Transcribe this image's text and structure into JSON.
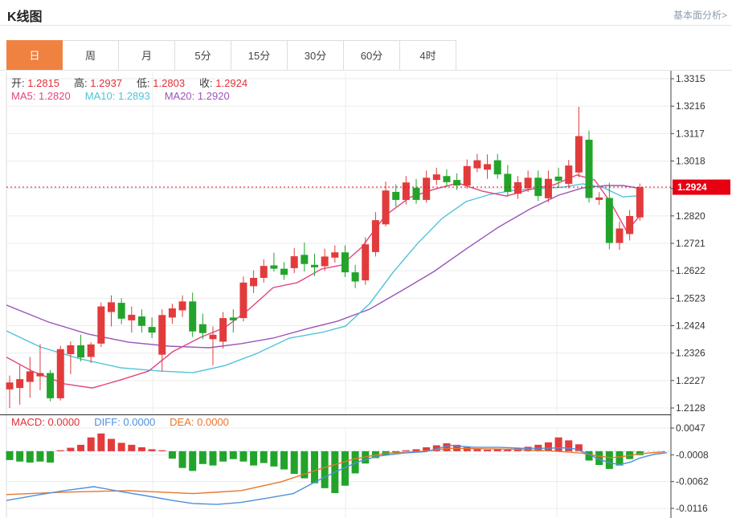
{
  "header": {
    "title": "K线图",
    "link": "基本面分析>"
  },
  "tabs": {
    "items": [
      "日",
      "周",
      "月",
      "5分",
      "15分",
      "30分",
      "60分",
      "4时"
    ],
    "active_index": 0
  },
  "info": {
    "open_label": "开:",
    "open": "1.2815",
    "high_label": "高:",
    "high": "1.2937",
    "low_label": "低:",
    "low": "1.2803",
    "close_label": "收:",
    "close": "1.2924"
  },
  "ma_info": {
    "ma5_label": "MA5:",
    "ma5": "1.2820",
    "ma10_label": "MA10:",
    "ma10": "1.2893",
    "ma20_label": "MA20:",
    "ma20": "1.2920"
  },
  "macd_info": {
    "macd_label": "MACD:",
    "macd": "0.0000",
    "diff_label": "DIFF:",
    "diff": "0.0000",
    "dea_label": "DEA:",
    "dea": "0.0000"
  },
  "colors": {
    "up": "#e23b3c",
    "down": "#22a42b",
    "ma5": "#e2477e",
    "ma10": "#4fc3d9",
    "ma20": "#9a55b8",
    "diff": "#4f8fdc",
    "dea": "#e8762c",
    "tab_active_bg": "#ef8240",
    "price_tag_bg": "#e60012",
    "grid": "#ececec",
    "axis": "#444444",
    "separator": "#2b2b2b",
    "macd_baseline": "#a8dcEA",
    "label_red": "#e03038"
  },
  "chart_data": {
    "type": "candlestick",
    "title": "K线图",
    "legend": [
      "MA5",
      "MA10",
      "MA20",
      "MACD",
      "DIFF",
      "DEA"
    ],
    "main": {
      "y_axis_labels": [
        "1.3315",
        "1.3216",
        "1.3117",
        "1.3018",
        "1.2924",
        "1.2820",
        "1.2721",
        "1.2622",
        "1.2523",
        "1.2424",
        "1.2326",
        "1.2227",
        "1.2128"
      ],
      "current_price_index": 4,
      "price_top": 1.3315,
      "price_bottom": 1.2128,
      "current_price": 1.2924,
      "current_price_label": "1.2924",
      "candles": [
        [
          1.2195,
          1.2245,
          1.2128,
          1.222
        ],
        [
          1.22,
          1.2282,
          1.214,
          1.2232
        ],
        [
          1.2222,
          1.2312,
          1.2165,
          1.226
        ],
        [
          1.2242,
          1.2358,
          1.2192,
          1.2254
        ],
        [
          1.2254,
          1.2265,
          1.2152,
          1.2163
        ],
        [
          1.2163,
          1.2352,
          1.2155,
          1.234
        ],
        [
          1.2322,
          1.2368,
          1.225,
          1.2354
        ],
        [
          1.2354,
          1.2392,
          1.2296,
          1.231
        ],
        [
          1.2312,
          1.2365,
          1.229,
          1.2357
        ],
        [
          1.236,
          1.2508,
          1.2348,
          1.2494
        ],
        [
          1.2474,
          1.2534,
          1.2422,
          1.2509
        ],
        [
          1.2507,
          1.2524,
          1.243,
          1.245
        ],
        [
          1.2444,
          1.2494,
          1.24,
          1.2464
        ],
        [
          1.2458,
          1.2484,
          1.24,
          1.2424
        ],
        [
          1.242,
          1.2454,
          1.238,
          1.24
        ],
        [
          1.232,
          1.2484,
          1.226,
          1.2463
        ],
        [
          1.2454,
          1.2504,
          1.2432,
          1.2487
        ],
        [
          1.248,
          1.2534,
          1.2456,
          1.2512
        ],
        [
          1.2512,
          1.2544,
          1.2384,
          1.2404
        ],
        [
          1.243,
          1.2468,
          1.2376,
          1.2398
        ],
        [
          1.2376,
          1.2422,
          1.2282,
          1.2392
        ],
        [
          1.2367,
          1.2474,
          1.2342,
          1.2452
        ],
        [
          1.2454,
          1.2484,
          1.24,
          1.2444
        ],
        [
          1.2452,
          1.2602,
          1.244,
          1.258
        ],
        [
          1.2567,
          1.2624,
          1.2542,
          1.2597
        ],
        [
          1.2597,
          1.2664,
          1.258,
          1.264
        ],
        [
          1.2642,
          1.2688,
          1.262,
          1.263
        ],
        [
          1.263,
          1.2654,
          1.259,
          1.2608
        ],
        [
          1.2632,
          1.2704,
          1.2614,
          1.2675
        ],
        [
          1.268,
          1.2724,
          1.262,
          1.2647
        ],
        [
          1.2644,
          1.2684,
          1.2604,
          1.2635
        ],
        [
          1.2639,
          1.2702,
          1.2622,
          1.2674
        ],
        [
          1.267,
          1.2714,
          1.2652,
          1.2689
        ],
        [
          1.2689,
          1.2714,
          1.26,
          1.2617
        ],
        [
          1.2617,
          1.2644,
          1.256,
          1.2584
        ],
        [
          1.2588,
          1.2744,
          1.2572,
          1.2718
        ],
        [
          1.269,
          1.2834,
          1.2674,
          1.2805
        ],
        [
          1.279,
          1.2944,
          1.2782,
          1.2912
        ],
        [
          1.2907,
          1.2934,
          1.2854,
          1.2878
        ],
        [
          1.2878,
          1.2964,
          1.2862,
          1.2941
        ],
        [
          1.2922,
          1.2954,
          1.2864,
          1.2878
        ],
        [
          1.2878,
          1.2984,
          1.2868,
          1.2958
        ],
        [
          1.295,
          1.2994,
          1.2932,
          1.297
        ],
        [
          1.2964,
          1.2988,
          1.2924,
          1.2942
        ],
        [
          1.295,
          1.2974,
          1.2914,
          1.293
        ],
        [
          1.293,
          1.3024,
          1.2918,
          1.3
        ],
        [
          1.2992,
          1.3044,
          1.2978,
          1.3021
        ],
        [
          1.2987,
          1.3042,
          1.2954,
          1.3007
        ],
        [
          1.3021,
          1.3044,
          1.2954,
          1.297
        ],
        [
          1.2972,
          1.3004,
          1.289,
          1.2907
        ],
        [
          1.29,
          1.2964,
          1.2882,
          1.2942
        ],
        [
          1.292,
          1.2984,
          1.2907,
          1.2958
        ],
        [
          1.2958,
          1.2984,
          1.2874,
          1.2892
        ],
        [
          1.2884,
          1.2984,
          1.287,
          1.2954
        ],
        [
          1.2962,
          1.2994,
          1.2922,
          1.2947
        ],
        [
          1.2936,
          1.3022,
          1.292,
          1.3002
        ],
        [
          1.2977,
          1.3214,
          1.296,
          1.3108
        ],
        [
          1.3095,
          1.3128,
          1.2868,
          1.2885
        ],
        [
          1.2878,
          1.2906,
          1.286,
          1.2887
        ],
        [
          1.2885,
          1.294,
          1.27,
          1.2723
        ],
        [
          1.2723,
          1.28,
          1.2698,
          1.2775
        ],
        [
          1.2755,
          1.2842,
          1.2732,
          1.282
        ],
        [
          1.2815,
          1.2937,
          1.2803,
          1.2924
        ]
      ],
      "ma5": [
        [
          8,
          1.2311
        ],
        [
          40,
          1.2261
        ],
        [
          80,
          1.2215
        ],
        [
          115,
          1.22
        ],
        [
          150,
          1.2229
        ],
        [
          185,
          1.2261
        ],
        [
          215,
          1.2331
        ],
        [
          250,
          1.2383
        ],
        [
          280,
          1.2418
        ],
        [
          310,
          1.2484
        ],
        [
          340,
          1.2562
        ],
        [
          370,
          1.258
        ],
        [
          400,
          1.2629
        ],
        [
          425,
          1.2643
        ],
        [
          450,
          1.2707
        ],
        [
          480,
          1.2823
        ],
        [
          510,
          1.2887
        ],
        [
          540,
          1.2916
        ],
        [
          570,
          1.2939
        ],
        [
          600,
          1.291
        ],
        [
          630,
          1.2892
        ],
        [
          660,
          1.2916
        ],
        [
          690,
          1.2933
        ],
        [
          718,
          1.2968
        ],
        [
          740,
          1.295
        ],
        [
          760,
          1.2869
        ],
        [
          780,
          1.2765
        ],
        [
          796,
          1.282
        ]
      ],
      "ma10": [
        [
          8,
          1.2406
        ],
        [
          50,
          1.2348
        ],
        [
          100,
          1.2305
        ],
        [
          150,
          1.2273
        ],
        [
          200,
          1.2261
        ],
        [
          240,
          1.2255
        ],
        [
          280,
          1.2281
        ],
        [
          320,
          1.2325
        ],
        [
          360,
          1.238
        ],
        [
          400,
          1.24
        ],
        [
          430,
          1.2423
        ],
        [
          460,
          1.2504
        ],
        [
          490,
          1.262
        ],
        [
          520,
          1.2722
        ],
        [
          550,
          1.2811
        ],
        [
          580,
          1.2872
        ],
        [
          610,
          1.2898
        ],
        [
          640,
          1.2913
        ],
        [
          670,
          1.2919
        ],
        [
          700,
          1.2924
        ],
        [
          725,
          1.2936
        ],
        [
          750,
          1.2924
        ],
        [
          775,
          1.2889
        ],
        [
          796,
          1.2893
        ]
      ],
      "ma20": [
        [
          8,
          1.2499
        ],
        [
          60,
          1.2438
        ],
        [
          110,
          1.2394
        ],
        [
          160,
          1.2365
        ],
        [
          210,
          1.2351
        ],
        [
          260,
          1.2345
        ],
        [
          300,
          1.236
        ],
        [
          340,
          1.238
        ],
        [
          380,
          1.2412
        ],
        [
          420,
          1.2441
        ],
        [
          460,
          1.2484
        ],
        [
          500,
          1.2551
        ],
        [
          540,
          1.262
        ],
        [
          580,
          1.2701
        ],
        [
          620,
          1.2779
        ],
        [
          660,
          1.2846
        ],
        [
          695,
          1.2895
        ],
        [
          725,
          1.2921
        ],
        [
          755,
          1.293
        ],
        [
          775,
          1.293
        ],
        [
          796,
          1.292
        ]
      ]
    },
    "macd": {
      "y_axis_labels": [
        "0.0047",
        "-0.0008",
        "-0.0062",
        "-0.0116"
      ],
      "value_top": 0.0047,
      "value_bottom": -0.0116,
      "histogram": [
        -0.0018,
        -0.0021,
        -0.0023,
        -0.0021,
        -0.0023,
        0.0002,
        0.0007,
        0.0013,
        0.0028,
        0.0036,
        0.0025,
        0.0017,
        0.0013,
        0.0008,
        0.0004,
        0.0002,
        -0.0015,
        -0.0034,
        -0.004,
        -0.0026,
        -0.0029,
        -0.0021,
        -0.0016,
        -0.0021,
        -0.0029,
        -0.0024,
        -0.0031,
        -0.0037,
        -0.0046,
        -0.0055,
        -0.0065,
        -0.0075,
        -0.0085,
        -0.007,
        -0.0045,
        -0.0025,
        -0.0014,
        -0.0008,
        -0.0003,
        0.0002,
        0.0004,
        0.0008,
        0.0012,
        0.0016,
        0.0013,
        0.0008,
        0.0004,
        0.0003,
        0.0004,
        0.0003,
        0.0006,
        0.0009,
        0.0013,
        0.0018,
        0.0028,
        0.0022,
        0.0014,
        -0.0019,
        -0.0028,
        -0.0036,
        -0.0029,
        -0.0016,
        -0.0008
      ],
      "diff_line": [
        [
          8,
          -0.01
        ],
        [
          50,
          -0.0088
        ],
        [
          80,
          -0.008
        ],
        [
          117,
          -0.0072
        ],
        [
          150,
          -0.0082
        ],
        [
          180,
          -0.009
        ],
        [
          215,
          -0.01
        ],
        [
          240,
          -0.0106
        ],
        [
          270,
          -0.0108
        ],
        [
          300,
          -0.0104
        ],
        [
          330,
          -0.0096
        ],
        [
          365,
          -0.0086
        ],
        [
          395,
          -0.006
        ],
        [
          420,
          -0.004
        ],
        [
          445,
          -0.0022
        ],
        [
          470,
          -0.001
        ],
        [
          500,
          -0.0004
        ],
        [
          530,
          -0.0001
        ],
        [
          560,
          0.0012
        ],
        [
          590,
          0.0008
        ],
        [
          620,
          0.0008
        ],
        [
          650,
          0.0006
        ],
        [
          680,
          0.0006
        ],
        [
          700,
          0.0007
        ],
        [
          715,
          0.0005
        ],
        [
          730,
          -0.0004
        ],
        [
          745,
          -0.0016
        ],
        [
          760,
          -0.0024
        ],
        [
          772,
          -0.0027
        ],
        [
          785,
          -0.0022
        ],
        [
          796,
          -0.0014
        ],
        [
          815,
          -0.0006
        ],
        [
          830,
          -0.0003
        ]
      ],
      "dea_line": [
        [
          8,
          -0.0088
        ],
        [
          80,
          -0.0083
        ],
        [
          160,
          -0.008
        ],
        [
          240,
          -0.0086
        ],
        [
          300,
          -0.008
        ],
        [
          350,
          -0.0062
        ],
        [
          400,
          -0.0035
        ],
        [
          440,
          -0.0016
        ],
        [
          480,
          -0.0004
        ],
        [
          520,
          -0.0001
        ],
        [
          560,
          0.0006
        ],
        [
          600,
          0.0005
        ],
        [
          640,
          0.0004
        ],
        [
          680,
          0.0001
        ],
        [
          700,
          -0.0001
        ],
        [
          725,
          -0.0004
        ],
        [
          745,
          -0.001
        ],
        [
          760,
          -0.0013
        ],
        [
          775,
          -0.0011
        ],
        [
          796,
          -0.0005
        ],
        [
          828,
          -0.0001
        ]
      ],
      "current_value": 0.0
    }
  }
}
